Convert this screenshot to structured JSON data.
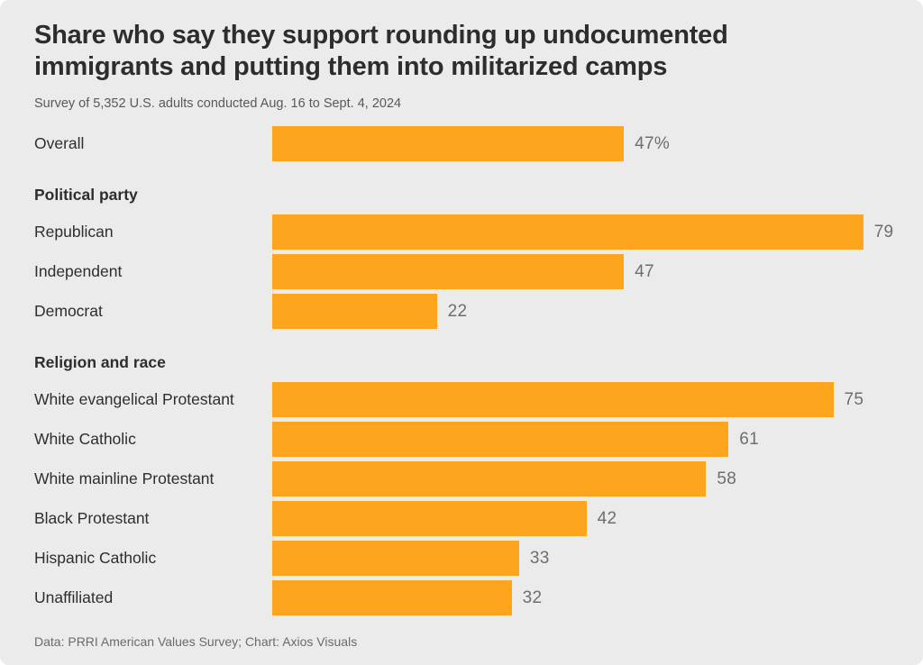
{
  "colors": {
    "bar": "#FCA51D",
    "background": "#EBEBEB",
    "title_text": "#2D2D2D",
    "subtitle_text": "#595959",
    "category_text": "#2E2E2E",
    "value_text": "#6E6E6E",
    "footer_text": "#6A6A6A"
  },
  "chart_data": {
    "type": "bar",
    "orientation": "horizontal",
    "title": "Share who say they support rounding up undocumented immigrants and putting them into militarized camps",
    "subtitle": "Survey of 5,352 U.S. adults conducted Aug. 16 to Sept. 4, 2024",
    "caption": "Data: PRRI American Values Survey; Chart: Axios Visuals",
    "xlabel": "",
    "ylabel": "",
    "xlim": [
      0,
      80
    ],
    "grid": false,
    "legend": false,
    "value_labels": "end-of-bar",
    "groups": [
      {
        "header": null,
        "rows": [
          {
            "label": "Overall",
            "value": 47,
            "display": "47%"
          }
        ]
      },
      {
        "header": "Political party",
        "rows": [
          {
            "label": "Republican",
            "value": 79,
            "display": "79"
          },
          {
            "label": "Independent",
            "value": 47,
            "display": "47"
          },
          {
            "label": "Democrat",
            "value": 22,
            "display": "22"
          }
        ]
      },
      {
        "header": "Religion and race",
        "rows": [
          {
            "label": "White evangelical Protestant",
            "value": 75,
            "display": "75"
          },
          {
            "label": "White Catholic",
            "value": 61,
            "display": "61"
          },
          {
            "label": "White mainline Protestant",
            "value": 58,
            "display": "58"
          },
          {
            "label": "Black Protestant",
            "value": 42,
            "display": "42"
          },
          {
            "label": "Hispanic Catholic",
            "value": 33,
            "display": "33"
          },
          {
            "label": "Unaffiliated",
            "value": 32,
            "display": "32"
          }
        ]
      }
    ]
  }
}
